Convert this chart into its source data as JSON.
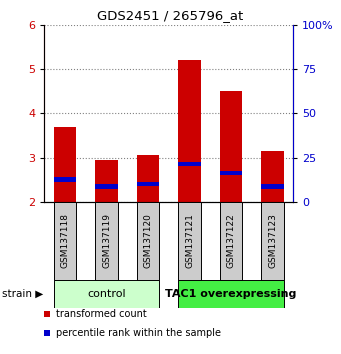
{
  "title": "GDS2451 / 265796_at",
  "samples": [
    "GSM137118",
    "GSM137119",
    "GSM137120",
    "GSM137121",
    "GSM137122",
    "GSM137123"
  ],
  "red_tops": [
    3.7,
    2.95,
    3.05,
    5.2,
    4.5,
    3.15
  ],
  "blue_tops": [
    2.5,
    2.35,
    2.4,
    2.85,
    2.65,
    2.35
  ],
  "bar_bottom": 2.0,
  "ylim_left": [
    2.0,
    6.0
  ],
  "ylim_right": [
    0,
    100
  ],
  "yticks_left": [
    2,
    3,
    4,
    5,
    6
  ],
  "yticks_right": [
    0,
    25,
    50,
    75,
    100
  ],
  "ytick_labels_right": [
    "0",
    "25",
    "50",
    "75",
    "100%"
  ],
  "red_color": "#cc0000",
  "blue_color": "#0000cc",
  "group1_label": "control",
  "group2_label": "TAC1 overexpressing",
  "group1_indices": [
    0,
    1,
    2
  ],
  "group2_indices": [
    3,
    4,
    5
  ],
  "group1_bg": "#ccffcc",
  "group2_bg": "#44ee44",
  "sample_bg": "#cccccc",
  "strain_label": "strain",
  "legend1": "transformed count",
  "legend2": "percentile rank within the sample",
  "bar_width": 0.55,
  "blue_bar_height": 0.1
}
